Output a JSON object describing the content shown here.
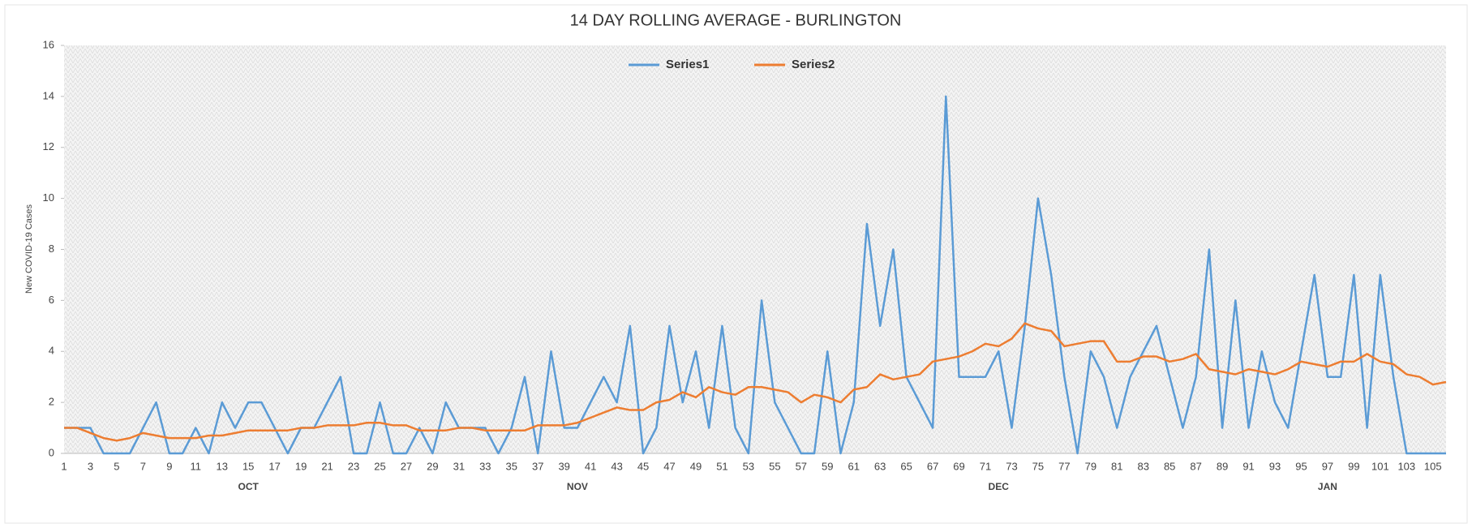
{
  "chart_data": {
    "type": "line",
    "title": "14 DAY ROLLING AVERAGE - BURLINGTON",
    "y_label": "New COVID-19 Cases",
    "categories": [
      1,
      null,
      3,
      null,
      5,
      null,
      7,
      null,
      9,
      null,
      11,
      null,
      13,
      null,
      15,
      null,
      17,
      null,
      19,
      null,
      21,
      null,
      23,
      null,
      25,
      null,
      27,
      null,
      29,
      null,
      31,
      null,
      33,
      null,
      35,
      null,
      37,
      null,
      39,
      null,
      41,
      null,
      43,
      null,
      45,
      null,
      47,
      null,
      49,
      null,
      51,
      null,
      53,
      null,
      55,
      null,
      57,
      null,
      59,
      null,
      61,
      null,
      63,
      null,
      65,
      null,
      67,
      null,
      69,
      null,
      71,
      null,
      73,
      null,
      75,
      null,
      77,
      null,
      79,
      null,
      81,
      null,
      83,
      null,
      85,
      null,
      87,
      null,
      89,
      null,
      91,
      null,
      93,
      null,
      95,
      null,
      97,
      null,
      99,
      null,
      101,
      null,
      103,
      null,
      105,
      null
    ],
    "month_labels": [
      {
        "label": "OCT",
        "x": 15
      },
      {
        "label": "NOV",
        "x": 40
      },
      {
        "label": "DEC",
        "x": 72
      },
      {
        "label": "JAN",
        "x": 97
      }
    ],
    "series": [
      {
        "name": "Series1",
        "color": "#5b9bd5",
        "values": [
          1,
          1,
          1,
          0,
          0,
          0,
          1,
          2,
          0,
          0,
          1,
          0,
          2,
          1,
          2,
          2,
          1,
          0,
          1,
          1,
          2,
          3,
          0,
          0,
          2,
          0,
          0,
          1,
          0,
          2,
          1,
          1,
          1,
          0,
          1,
          3,
          0,
          4,
          1,
          1,
          2,
          3,
          2,
          5,
          0,
          1,
          5,
          2,
          4,
          1,
          5,
          1,
          0,
          6,
          2,
          1,
          0,
          0,
          4,
          0,
          2,
          9,
          5,
          8,
          3,
          2,
          1,
          14,
          3,
          3,
          3,
          4,
          1,
          5,
          10,
          7,
          3,
          0,
          4,
          3,
          1,
          3,
          4,
          5,
          3,
          1,
          3,
          8,
          1,
          6,
          1,
          4,
          2,
          1,
          4,
          7,
          3,
          3,
          7,
          1,
          7,
          3,
          0,
          0,
          0,
          0
        ]
      },
      {
        "name": "Series2",
        "color": "#ed7d31",
        "values": [
          1,
          1,
          0.8,
          0.6,
          0.5,
          0.6,
          0.8,
          0.7,
          0.6,
          0.6,
          0.6,
          0.7,
          0.7,
          0.8,
          0.9,
          0.9,
          0.9,
          0.9,
          1,
          1,
          1.1,
          1.1,
          1.1,
          1.2,
          1.2,
          1.1,
          1.1,
          0.9,
          0.9,
          0.9,
          1,
          1,
          0.9,
          0.9,
          0.9,
          0.9,
          1.1,
          1.1,
          1.1,
          1.2,
          1.4,
          1.6,
          1.8,
          1.7,
          1.7,
          2,
          2.1,
          2.4,
          2.2,
          2.6,
          2.4,
          2.3,
          2.6,
          2.6,
          2.5,
          2.4,
          2,
          2.3,
          2.2,
          2,
          2.5,
          2.6,
          3.1,
          2.9,
          3,
          3.1,
          3.6,
          3.7,
          3.8,
          4,
          4.3,
          4.2,
          4.5,
          5.1,
          4.9,
          4.8,
          4.2,
          4.3,
          4.4,
          4.4,
          3.6,
          3.6,
          3.8,
          3.8,
          3.6,
          3.7,
          3.9,
          3.3,
          3.2,
          3.1,
          3.3,
          3.2,
          3.1,
          3.3,
          3.6,
          3.5,
          3.4,
          3.6,
          3.6,
          3.9,
          3.6,
          3.5,
          3.1,
          3,
          2.7,
          2.8
        ]
      }
    ],
    "ylim": [
      0,
      16
    ],
    "yticks": [
      0,
      2,
      4,
      6,
      8,
      10,
      12,
      14,
      16
    ],
    "legend": "top"
  }
}
